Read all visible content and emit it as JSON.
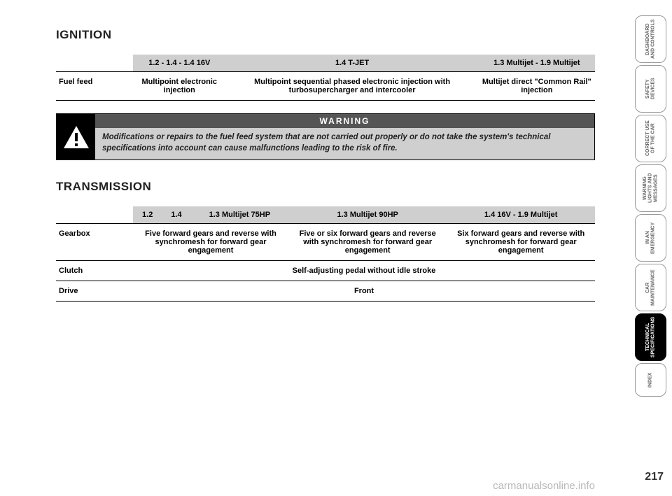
{
  "ignition": {
    "title": "IGNITION",
    "headers": [
      "1.2 - 1.4 - 1.4 16V",
      "1.4 T-JET",
      "1.3 Multijet - 1.9 Multijet"
    ],
    "rowLabel": "Fuel feed",
    "cells": [
      "Multipoint electronic injection",
      "Multipoint sequential phased electronic injection with turbosupercharger and intercooler",
      "Multijet direct \"Common Rail\" injection"
    ]
  },
  "warning": {
    "label": "WARNING",
    "text": "Modifications or repairs to the fuel feed system that are not carried out properly or do not take the system's technical specifications into account can cause malfunctions leading to the risk of fire."
  },
  "transmission": {
    "title": "TRANSMISSION",
    "headers": [
      "1.2",
      "1.4",
      "1.3 Multijet 75HP",
      "1.3 Multijet 90HP",
      "1.4 16V - 1.9 Multijet"
    ],
    "rows": [
      {
        "label": "Gearbox",
        "cells": [
          {
            "span": 3,
            "text": "Five forward gears and reverse with synchromesh for forward gear engagement"
          },
          {
            "span": 1,
            "text": "Five or six forward gears and reverse with synchromesh for forward gear engagement"
          },
          {
            "span": 1,
            "text": "Six forward gears and reverse with synchromesh for forward gear engagement"
          }
        ]
      },
      {
        "label": "Clutch",
        "cells": [
          {
            "span": 5,
            "text": "Self-adjusting pedal without idle stroke"
          }
        ]
      },
      {
        "label": "Drive",
        "cells": [
          {
            "span": 5,
            "text": "Front"
          }
        ]
      }
    ]
  },
  "tabs": [
    {
      "label": "DASHBOARD AND CONTROLS",
      "active": false
    },
    {
      "label": "SAFETY DEVICES",
      "active": false
    },
    {
      "label": "CORRECT USE OF THE CAR",
      "active": false
    },
    {
      "label": "WARNING LIGHTS AND MESSAGES",
      "active": false
    },
    {
      "label": "IN AN EMERGENCY",
      "active": false
    },
    {
      "label": "CAR MAINTENANCE",
      "active": false
    },
    {
      "label": "TECHNICAL SPECIFICATIONS",
      "active": true
    },
    {
      "label": "INDEX",
      "active": false,
      "short": true
    }
  ],
  "pageNumber": "217",
  "watermark": "carmanualsonline.info"
}
